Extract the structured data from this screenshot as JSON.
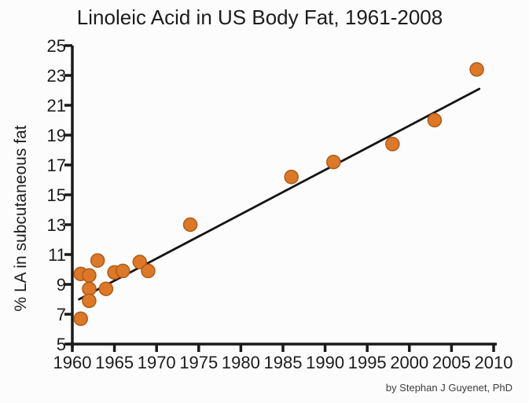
{
  "chart_data": {
    "type": "scatter",
    "title": "Linoleic Acid in US Body Fat, 1961-2008",
    "xlabel": "",
    "ylabel": "% LA in subcutaneous fat",
    "attribution": "by Stephan J Guyenet, PhD",
    "xlim": [
      1960,
      2010
    ],
    "ylim": [
      5,
      25
    ],
    "x_ticks": [
      1960,
      1965,
      1970,
      1975,
      1980,
      1985,
      1990,
      1995,
      2000,
      2005,
      2010
    ],
    "y_ticks": [
      5,
      7,
      9,
      11,
      13,
      15,
      17,
      19,
      21,
      23,
      25
    ],
    "grid": false,
    "legend": "none",
    "series": [
      {
        "name": "% LA in subcutaneous fat",
        "points": [
          [
            1961,
            9.7
          ],
          [
            1961,
            6.7
          ],
          [
            1962,
            9.6
          ],
          [
            1962,
            8.7
          ],
          [
            1962,
            7.9
          ],
          [
            1963,
            10.6
          ],
          [
            1964,
            8.7
          ],
          [
            1965,
            9.8
          ],
          [
            1966,
            9.9
          ],
          [
            1968,
            10.5
          ],
          [
            1969,
            9.9
          ],
          [
            1974,
            13.0
          ],
          [
            1986,
            16.2
          ],
          [
            1991,
            17.2
          ],
          [
            1998,
            18.4
          ],
          [
            2003,
            20.0
          ],
          [
            2008,
            23.4
          ]
        ]
      }
    ],
    "trendline": {
      "x1": 1960.8,
      "y1": 8.0,
      "x2": 2008.3,
      "y2": 22.1
    },
    "colors": {
      "point_fill": "#DD7827",
      "point_border": "#AE5B18",
      "trend_line": "#141414",
      "axis": "#1a1a1a",
      "tick_text": "#1c1c1c",
      "attribution_text": "#3d3d3d",
      "background": "#fcfcfc"
    }
  }
}
